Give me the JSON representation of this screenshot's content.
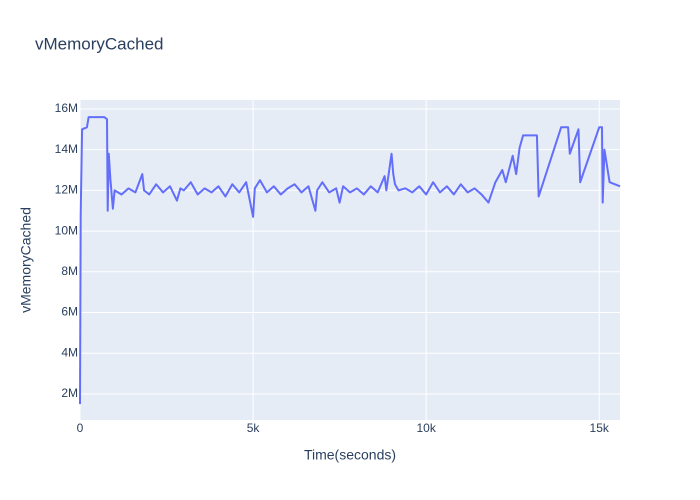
{
  "chart_data": {
    "type": "line",
    "title": "vMemoryCached",
    "x_label": "Time(seconds)",
    "y_label": "vMemoryCached",
    "grid": true,
    "xlim": [
      0,
      15600
    ],
    "ylim": [
      720000,
      16440000
    ],
    "xticks": [
      0,
      {
        "value": 5000,
        "label": "5k"
      },
      {
        "value": 10000,
        "label": "10k"
      },
      {
        "value": 15000,
        "label": "15k"
      }
    ],
    "yticks": [
      {
        "value": 2000000,
        "label": "2M"
      },
      {
        "value": 4000000,
        "label": "4M"
      },
      {
        "value": 6000000,
        "label": "6M"
      },
      {
        "value": 8000000,
        "label": "8M"
      },
      {
        "value": 10000000,
        "label": "10M"
      },
      {
        "value": 12000000,
        "label": "12M"
      },
      {
        "value": 14000000,
        "label": "14M"
      },
      {
        "value": 16000000,
        "label": "16M"
      }
    ],
    "x": [
      0,
      20,
      60,
      200,
      250,
      700,
      780,
      800,
      830,
      880,
      950,
      1000,
      1200,
      1400,
      1600,
      1800,
      1850,
      2000,
      2200,
      2400,
      2600,
      2800,
      2900,
      3000,
      3200,
      3400,
      3600,
      3800,
      4000,
      4200,
      4400,
      4600,
      4800,
      5000,
      5050,
      5200,
      5400,
      5600,
      5800,
      6000,
      6200,
      6400,
      6600,
      6800,
      6850,
      7000,
      7200,
      7400,
      7500,
      7600,
      7800,
      8000,
      8200,
      8400,
      8600,
      8800,
      8850,
      9000,
      9050,
      9100,
      9200,
      9400,
      9600,
      9800,
      10000,
      10200,
      10400,
      10600,
      10800,
      11000,
      11200,
      11400,
      11600,
      11800,
      12000,
      12200,
      12300,
      12500,
      12600,
      12700,
      12800,
      13200,
      13250,
      13900,
      14100,
      14150,
      14400,
      14450,
      15000,
      15080,
      15100,
      15150,
      15300,
      15600
    ],
    "series": [
      {
        "color": "#636efa",
        "values": [
          1500000,
          10800000,
          15000000,
          15100000,
          15600000,
          15600000,
          15500000,
          11000000,
          13800000,
          12500000,
          11100000,
          12000000,
          11800000,
          12100000,
          11900000,
          12800000,
          12000000,
          11800000,
          12300000,
          11900000,
          12200000,
          11500000,
          12100000,
          12000000,
          12400000,
          11800000,
          12100000,
          11900000,
          12200000,
          11700000,
          12300000,
          11900000,
          12400000,
          10700000,
          12100000,
          12500000,
          11900000,
          12200000,
          11800000,
          12100000,
          12300000,
          11900000,
          12200000,
          11000000,
          12000000,
          12400000,
          11900000,
          12100000,
          11400000,
          12200000,
          11900000,
          12100000,
          11800000,
          12200000,
          11900000,
          12700000,
          12000000,
          13800000,
          12800000,
          12300000,
          12000000,
          12100000,
          11900000,
          12200000,
          11800000,
          12400000,
          11900000,
          12200000,
          11800000,
          12300000,
          11900000,
          12100000,
          11800000,
          11400000,
          12400000,
          13000000,
          12400000,
          13700000,
          12800000,
          14100000,
          14700000,
          14700000,
          11700000,
          15100000,
          15100000,
          13800000,
          15000000,
          12400000,
          15100000,
          15100000,
          11400000,
          14000000,
          12400000,
          12200000
        ]
      }
    ]
  }
}
